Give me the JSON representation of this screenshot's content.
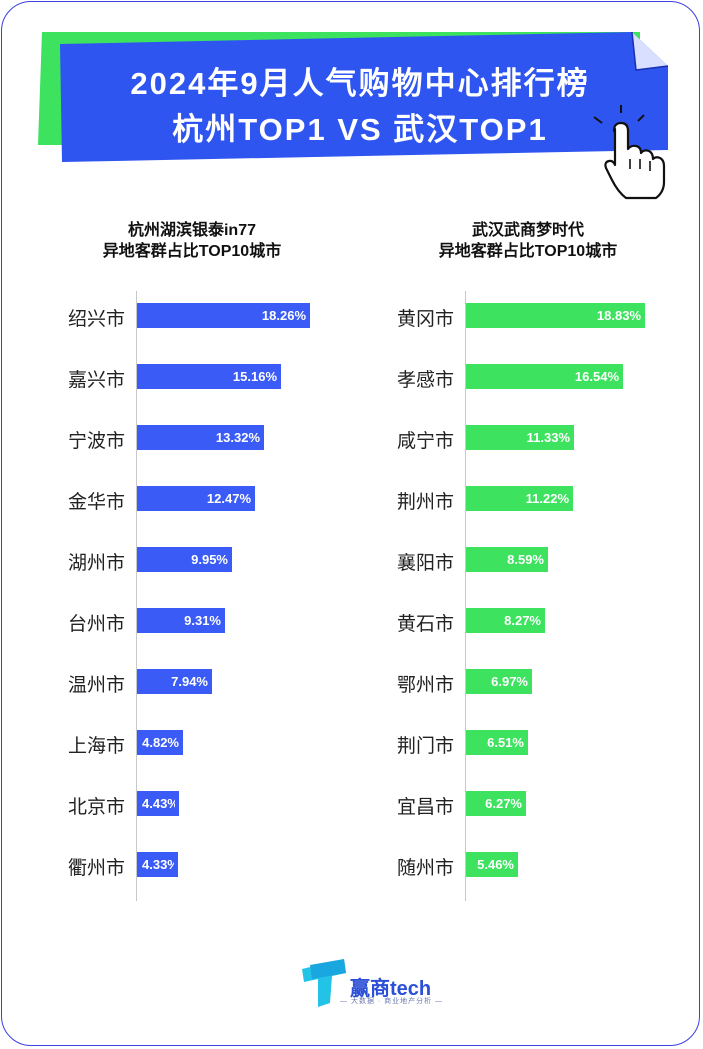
{
  "title": {
    "line1": "2024年9月人气购物中心排行榜",
    "line2": "杭州TOP1 VS 武汉TOP1"
  },
  "colors": {
    "left_bar": "#3a5bf5",
    "right_bar": "#3de25e",
    "banner_blue": "#2f55f0",
    "banner_green": "#3de25e"
  },
  "chart_data": [
    {
      "type": "bar",
      "orientation": "horizontal",
      "title": "杭州湖滨银泰in77",
      "subtitle": "异地客群占比TOP10城市",
      "categories": [
        "绍兴市",
        "嘉兴市",
        "宁波市",
        "金华市",
        "湖州市",
        "台州市",
        "温州市",
        "上海市",
        "北京市",
        "衢州市"
      ],
      "values": [
        18.26,
        15.16,
        13.32,
        12.47,
        9.95,
        9.31,
        7.94,
        4.82,
        4.43,
        4.33
      ],
      "value_labels": [
        "18.26%",
        "15.16%",
        "13.32%",
        "12.47%",
        "9.95%",
        "9.31%",
        "7.94%",
        "4.82%",
        "4.43%",
        "4.33%"
      ],
      "unit": "%"
    },
    {
      "type": "bar",
      "orientation": "horizontal",
      "title": "武汉武商梦时代",
      "subtitle": "异地客群占比TOP10城市",
      "categories": [
        "黄冈市",
        "孝感市",
        "咸宁市",
        "荆州市",
        "襄阳市",
        "黄石市",
        "鄂州市",
        "荆门市",
        "宜昌市",
        "随州市"
      ],
      "values": [
        18.83,
        16.54,
        11.33,
        11.22,
        8.59,
        8.27,
        6.97,
        6.51,
        6.27,
        5.46
      ],
      "value_labels": [
        "18.83%",
        "16.54%",
        "11.33%",
        "11.22%",
        "8.59%",
        "8.27%",
        "6.97%",
        "6.51%",
        "6.27%",
        "5.46%"
      ],
      "unit": "%"
    }
  ],
  "logo": {
    "name": "赢商tech",
    "tagline": "— 大数据 · 商业地产分析 —",
    "icon": "logo-T-icon"
  },
  "decoration": {
    "icon": "pointer-hand-icon"
  }
}
